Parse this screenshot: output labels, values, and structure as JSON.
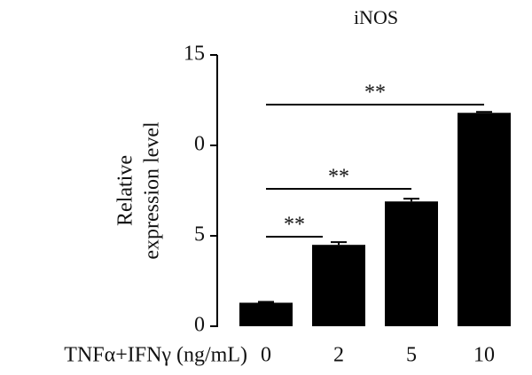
{
  "chart_data": {
    "type": "bar",
    "title": "iNOS",
    "y_label": [
      "Relative",
      "expression level"
    ],
    "x_label": "TNFα+IFNγ (ng/mL)",
    "categories": [
      "0",
      "2",
      "5",
      "10"
    ],
    "values": [
      1.3,
      4.5,
      6.9,
      11.8
    ],
    "errors": [
      0.05,
      0.15,
      0.15,
      0.05
    ],
    "color": "#000000",
    "ylim": [
      0,
      15
    ],
    "yticks": [
      0,
      5,
      {
        "value": 10,
        "label": "0"
      },
      15
    ],
    "annotations": [
      "**",
      "**",
      "**"
    ]
  }
}
